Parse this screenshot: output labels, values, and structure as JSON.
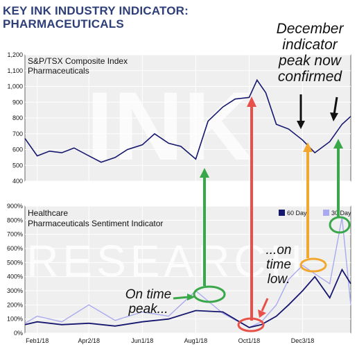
{
  "header": {
    "title_line1": "KEY INK INDUSTRY INDICATOR:",
    "title_line2": "PHARMACEUTICALS"
  },
  "watermark": {
    "top_text": "INK",
    "bottom_text": "RESEARCH"
  },
  "annotations": {
    "december_line1": "December",
    "december_line2": "indicator",
    "december_line3": "peak now",
    "december_line4": "confirmed",
    "on_time_peak_line1": "On time",
    "on_time_peak_line2": "peak...",
    "on_time_low_line1": "...on",
    "on_time_low_line2": "time",
    "on_time_low_line3": "low."
  },
  "colors": {
    "title": "#2d3e78",
    "line_60day": "#15166e",
    "line_30day": "#a9a9ef",
    "arrow_green": "#3aa84a",
    "arrow_red": "#e8504a",
    "circle_orange": "#f2a830",
    "panel_bg": "#efefef"
  },
  "chart_data": [
    {
      "type": "line",
      "title": "S&P/TSX Composite Index",
      "subtitle": "Pharmaceuticals",
      "ylim": [
        400,
        1200
      ],
      "y_ticks": [
        400,
        500,
        600,
        700,
        800,
        900,
        "1,000",
        "1,100",
        "1,200"
      ],
      "x_ticks": [
        "Feb1/18",
        "Apr2/18",
        "Jun1/18",
        "Aug1/18",
        "Oct1/18",
        "Dec3/18"
      ],
      "grid": true,
      "series": [
        {
          "values_approx": [
            [
              "Jan18",
              670
            ],
            [
              "Feb1",
              560
            ],
            [
              "Feb15",
              590
            ],
            [
              "Mar1",
              580
            ],
            [
              "Mar15",
              610
            ],
            [
              "Apr1",
              560
            ],
            [
              "Apr15",
              520
            ],
            [
              "May1",
              550
            ],
            [
              "May15",
              600
            ],
            [
              "Jun1",
              630
            ],
            [
              "Jun15",
              700
            ],
            [
              "Jul1",
              640
            ],
            [
              "Jul15",
              620
            ],
            [
              "Aug1",
              540
            ],
            [
              "Aug15",
              780
            ],
            [
              "Sep1",
              870
            ],
            [
              "Sep15",
              920
            ],
            [
              "Oct1",
              930
            ],
            [
              "Oct10",
              1040
            ],
            [
              "Oct20",
              960
            ],
            [
              "Nov1",
              760
            ],
            [
              "Nov15",
              730
            ],
            [
              "Dec1",
              660
            ],
            [
              "Dec15",
              580
            ],
            [
              "Jan1",
              650
            ],
            [
              "Jan15",
              760
            ],
            [
              "Jan25",
              810
            ]
          ]
        }
      ]
    },
    {
      "type": "line",
      "title": "Healthcare",
      "subtitle": "Pharmaceuticals Sentiment Indicator",
      "ylim": [
        0,
        900
      ],
      "y_ticks": [
        "0%",
        "100%",
        "200%",
        "300%",
        "400%",
        "500%",
        "600%",
        "700%",
        "800%",
        "900%"
      ],
      "x_ticks": [
        "Feb1/18",
        "Apr2/18",
        "Jun1/18",
        "Aug1/18",
        "Oct1/18",
        "Dec3/18"
      ],
      "legend": {
        "placement": "top-right",
        "entries": [
          "60 Day",
          "30 Day"
        ]
      },
      "grid": true,
      "series": [
        {
          "name": "60 Day",
          "values_approx": [
            [
              "Jan18",
              60
            ],
            [
              "Feb1",
              80
            ],
            [
              "Mar1",
              60
            ],
            [
              "Apr1",
              70
            ],
            [
              "May1",
              50
            ],
            [
              "Jun1",
              80
            ],
            [
              "Jul1",
              100
            ],
            [
              "Aug1",
              160
            ],
            [
              "Sep1",
              150
            ],
            [
              "Oct1",
              40
            ],
            [
              "Oct15",
              60
            ],
            [
              "Nov1",
              120
            ],
            [
              "Nov15",
              200
            ],
            [
              "Dec1",
              300
            ],
            [
              "Dec15",
              400
            ],
            [
              "Jan1",
              250
            ],
            [
              "Jan15",
              450
            ],
            [
              "Jan25",
              350
            ]
          ]
        },
        {
          "name": "30 Day",
          "values_approx": [
            [
              "Jan18",
              70
            ],
            [
              "Feb1",
              120
            ],
            [
              "Mar1",
              80
            ],
            [
              "Apr1",
              200
            ],
            [
              "May1",
              90
            ],
            [
              "Jun1",
              150
            ],
            [
              "Jul1",
              120
            ],
            [
              "Aug1",
              300
            ],
            [
              "Sep1",
              140
            ],
            [
              "Oct1",
              40
            ],
            [
              "Oct15",
              80
            ],
            [
              "Nov1",
              200
            ],
            [
              "Nov15",
              380
            ],
            [
              "Dec1",
              480
            ],
            [
              "Dec15",
              420
            ],
            [
              "Jan1",
              350
            ],
            [
              "Jan15",
              820
            ],
            [
              "Jan25",
              200
            ]
          ]
        }
      ]
    }
  ]
}
